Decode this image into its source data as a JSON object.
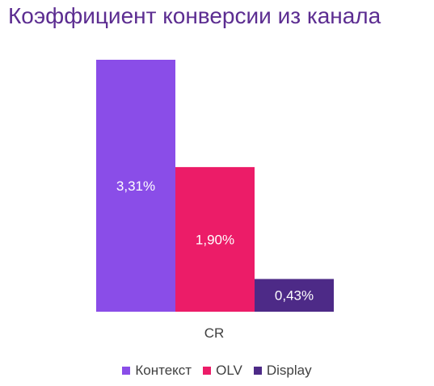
{
  "chart_data": {
    "type": "bar",
    "title": "Коэффициент конверсии из канала",
    "categories": [
      "CR"
    ],
    "series": [
      {
        "name": "Контекст",
        "values": [
          3.31
        ],
        "label": "3,31%",
        "color": "#8a4de8"
      },
      {
        "name": "OLV",
        "values": [
          1.9
        ],
        "label": "1,90%",
        "color": "#ec1c68"
      },
      {
        "name": "Display",
        "values": [
          0.43
        ],
        "label": "0,43%",
        "color": "#4d2a87"
      }
    ],
    "ylim": [
      0,
      3.31
    ],
    "grid": false,
    "legend_position": "bottom",
    "colors": {
      "title": "#5c2d91",
      "text": "#404040"
    }
  }
}
